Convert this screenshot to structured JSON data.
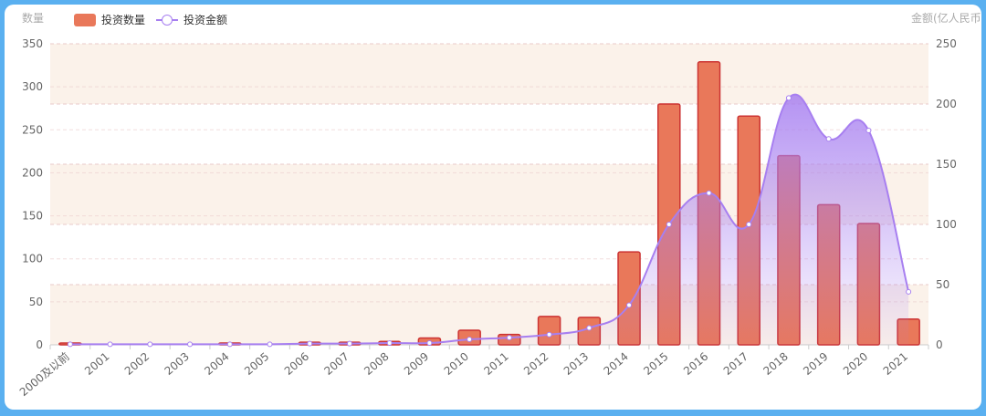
{
  "legend": {
    "bar_label": "投资数量",
    "line_label": "投资金额"
  },
  "axes": {
    "left_name": "数量",
    "right_name": "金额(亿人民币"
  },
  "colors": {
    "bar_fill": "#e9785a",
    "bar_stroke": "#cc3333",
    "line": "#a77ff0",
    "band": "#fbf2ea",
    "grid": "#e9c9c9",
    "background": "#5ab0f0"
  },
  "chart_data": {
    "type": "bar",
    "categories": [
      "2000及以前",
      "2001",
      "2002",
      "2003",
      "2004",
      "2005",
      "2006",
      "2007",
      "2008",
      "2009",
      "2010",
      "2011",
      "2012",
      "2013",
      "2014",
      "2015",
      "2016",
      "2017",
      "2018",
      "2019",
      "2020",
      "2021"
    ],
    "series": [
      {
        "name": "投资数量",
        "type": "bar",
        "axis": "left",
        "values": [
          2,
          0,
          0,
          0,
          1,
          0,
          3,
          3,
          4,
          8,
          17,
          12,
          33,
          32,
          108,
          280,
          329,
          266,
          220,
          163,
          141,
          30
        ]
      },
      {
        "name": "投资金额",
        "type": "line",
        "axis": "right",
        "smooth": true,
        "area": true,
        "values": [
          0.5,
          0.5,
          0.5,
          0.5,
          0.5,
          0.5,
          1,
          1,
          1.5,
          1.5,
          4.5,
          6,
          8.5,
          14,
          33,
          100,
          126,
          100,
          205,
          171,
          178,
          44
        ]
      }
    ],
    "y_left": {
      "min": 0,
      "max": 350,
      "ticks": [
        0,
        50,
        100,
        150,
        200,
        250,
        300,
        350
      ]
    },
    "y_right": {
      "min": 0,
      "max": 250,
      "ticks": [
        0,
        50,
        100,
        150,
        200,
        250
      ]
    },
    "grid": true,
    "legend_position": "top-left"
  }
}
